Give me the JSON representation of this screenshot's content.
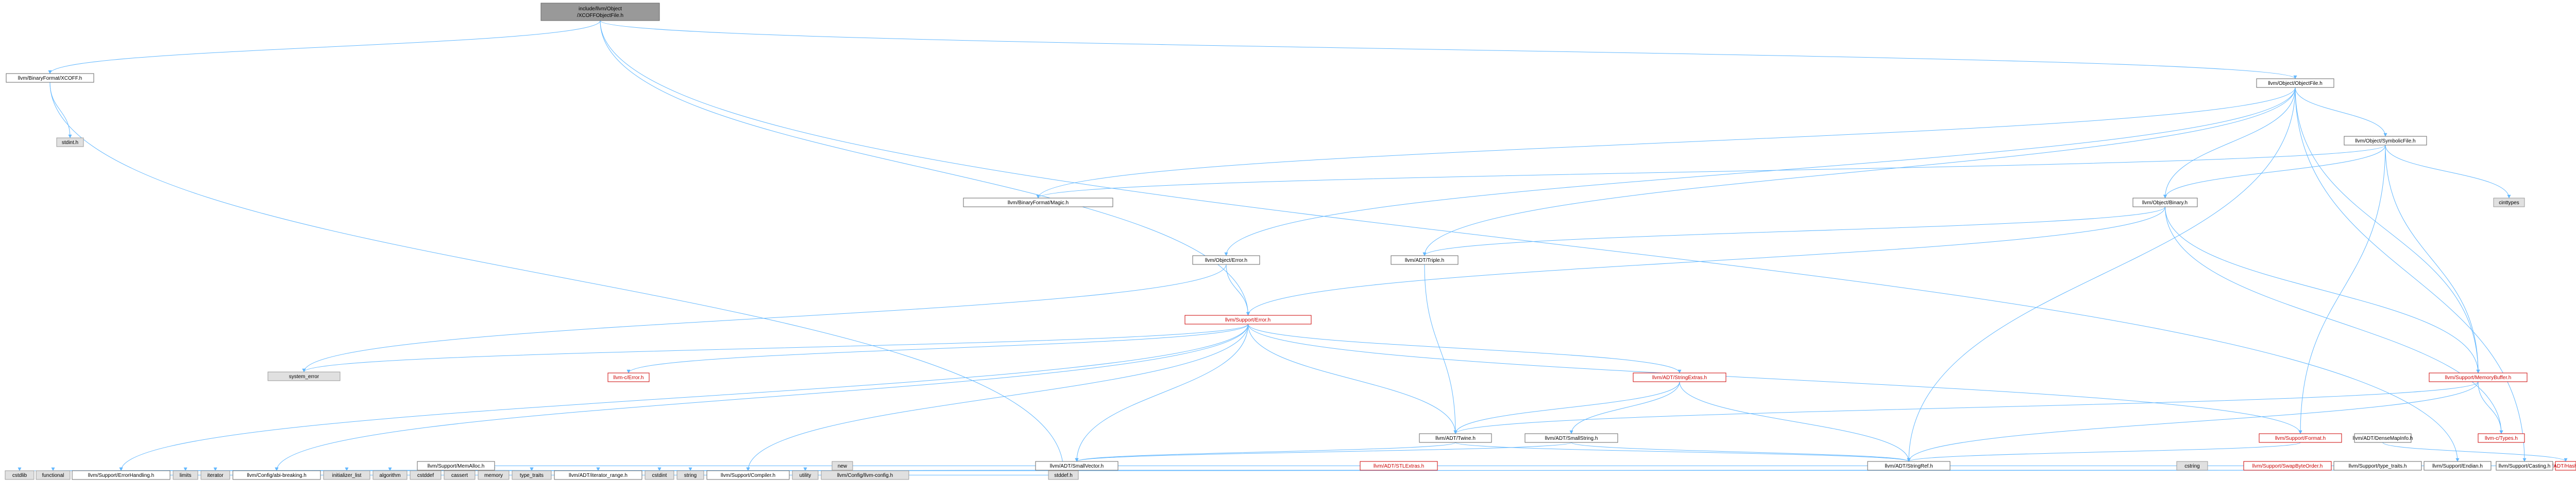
{
  "diagram": {
    "root": {
      "line1": "include/llvm/Object",
      "line2": "/XCOFFObjectFile.h"
    },
    "nodes": {
      "xcoff_h": "llvm/BinaryFormat/XCOFF.h",
      "stdint_h": "stdint.h",
      "stddef_h": "stddef.h",
      "objectfile_h": "llvm/Object/ObjectFile.h",
      "symbolicfile_h": "llvm/Object/SymbolicFile.h",
      "cinttypes": "cinttypes",
      "binary_h": "llvm/Object/Binary.h",
      "magic_h": "llvm/BinaryFormat/Magic.h",
      "objerror_h": "llvm/Object/Error.h",
      "triple_h": "llvm/ADT/Triple.h",
      "error_h": "llvm/Support/Error.h",
      "system_error": "system_error",
      "c_error_h": "llvm-c/Error.h",
      "stringextras_h": "llvm/ADT/StringExtras.h",
      "memorybuffer_h": "llvm/Support/MemoryBuffer.h",
      "c_types_h": "llvm-c/Types.h",
      "twine_h": "llvm/ADT/Twine.h",
      "smallstring_h": "llvm/ADT/SmallString.h",
      "format_h": "llvm/Support/Format.h",
      "densemapinfo_h": "llvm/ADT/DenseMapInfo.h",
      "smallvector_h": "llvm/ADT/SmallVector.h",
      "stringref_h": "llvm/ADT/StringRef.h",
      "hashing_h": "llvm/ADT/Hashing.h",
      "endian_h": "llvm/Support/Endian.h",
      "casting_h": "llvm/Support/Casting.h",
      "new": "new",
      "memalloc_h": "llvm/Support/MemAlloc.h",
      "stlextras_h": "llvm/ADT/STLExtras.h",
      "cstring": "cstring",
      "swapbyteorder_h": "llvm/Support/SwapByteOrder.h",
      "typetraits_h": "llvm/Support/type_traits.h",
      "cstdlib": "cstdlib",
      "functional": "functional",
      "errorhandling_h": "llvm/Support/ErrorHandling.h",
      "limits": "limits",
      "iterator": "iterator",
      "databreaking_h": "llvm/Config/abi-breaking.h",
      "initializer_list": "initializer_list",
      "algorithm": "algorithm",
      "cstddef": "cstddef",
      "cassert": "cassert",
      "memory": "memory",
      "type_traits": "type_traits",
      "iterator_range_h": "llvm/ADT/iterator_range.h",
      "cstdint": "cstdint",
      "string": "string",
      "compiler_h": "llvm/Support/Compiler.h",
      "utility": "utility",
      "llvm_config_h": "llvm/Config/llvm-config.h"
    }
  }
}
